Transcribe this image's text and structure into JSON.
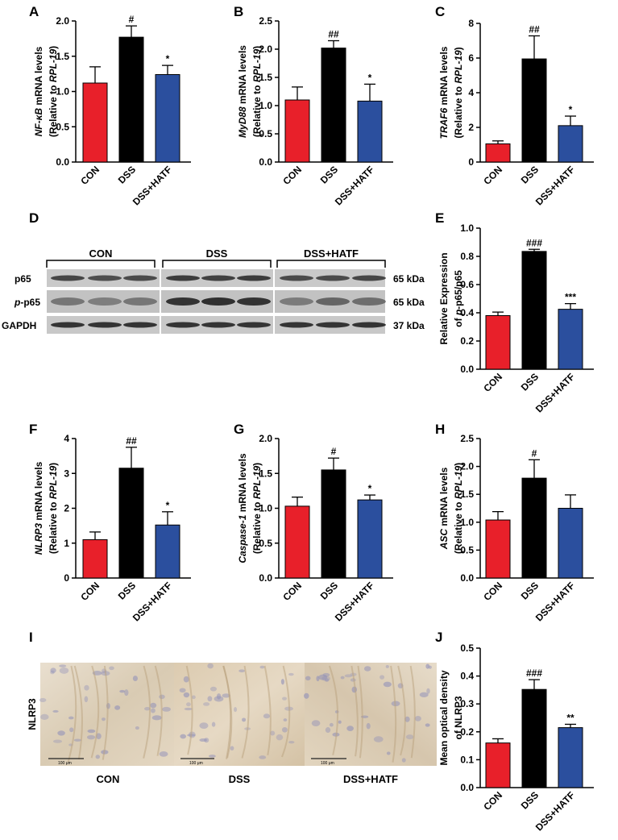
{
  "colors": {
    "CON": "#e8202a",
    "DSS": "#000000",
    "DSS+HATF": "#2b4f9e"
  },
  "groups": [
    "CON",
    "DSS",
    "DSS+HATF"
  ],
  "chart_data": [
    {
      "id": "A",
      "type": "bar",
      "ylabel_italic": "NF-κB",
      "ylabel_rest": " mRNA levels",
      "ylabel2_pre": "(Relative to ",
      "ylabel2_italic": "RPL-19",
      "ylabel2_post": ")",
      "categories": [
        "CON",
        "DSS",
        "DSS+HATF"
      ],
      "values": [
        1.12,
        1.77,
        1.24
      ],
      "errors": [
        0.23,
        0.16,
        0.13
      ],
      "sig": [
        "",
        "#",
        "*"
      ],
      "ylim": [
        0,
        2.0
      ],
      "ticks": [
        "0.0",
        "0.5",
        "1.0",
        "1.5",
        "2.0"
      ],
      "tick_values": [
        0,
        0.5,
        1.0,
        1.5,
        2.0
      ]
    },
    {
      "id": "B",
      "type": "bar",
      "ylabel_italic": "MyD88",
      "ylabel_rest": " mRNA levels",
      "ylabel2_pre": "(Relative to ",
      "ylabel2_italic": "RPL-19",
      "ylabel2_post": ")",
      "categories": [
        "CON",
        "DSS",
        "DSS+HATF"
      ],
      "values": [
        1.1,
        2.02,
        1.08
      ],
      "errors": [
        0.23,
        0.13,
        0.3
      ],
      "sig": [
        "",
        "##",
        "*"
      ],
      "ylim": [
        0,
        2.5
      ],
      "ticks": [
        "0.0",
        "0.5",
        "1.0",
        "1.5",
        "2.0",
        "2.5"
      ],
      "tick_values": [
        0,
        0.5,
        1.0,
        1.5,
        2.0,
        2.5
      ]
    },
    {
      "id": "C",
      "type": "bar",
      "ylabel_italic": "TRAF6",
      "ylabel_rest": " mRNA levels",
      "ylabel2_pre": "(Relative to ",
      "ylabel2_italic": "RPL-19",
      "ylabel2_post": ")",
      "categories": [
        "CON",
        "DSS",
        "DSS+HATF"
      ],
      "values": [
        1.05,
        5.95,
        2.1
      ],
      "errors": [
        0.17,
        1.33,
        0.55
      ],
      "sig": [
        "",
        "##",
        "*"
      ],
      "ylim": [
        0,
        8
      ],
      "ticks": [
        "0",
        "2",
        "4",
        "6",
        "8"
      ],
      "tick_values": [
        0,
        2,
        4,
        6,
        8
      ]
    },
    {
      "id": "E",
      "type": "bar",
      "ylabel_italic": "",
      "ylabel_rest": "Relative  Expression",
      "ylabel2_pre": "of ",
      "ylabel2_italic": "p",
      "ylabel2_post": "-p65/p65",
      "categories": [
        "CON",
        "DSS",
        "DSS+HATF"
      ],
      "values": [
        0.38,
        0.835,
        0.425
      ],
      "errors": [
        0.025,
        0.015,
        0.04
      ],
      "sig": [
        "",
        "###",
        "***"
      ],
      "ylim": [
        0,
        1.0
      ],
      "ticks": [
        "0.0",
        "0.2",
        "0.4",
        "0.6",
        "0.8",
        "1.0"
      ],
      "tick_values": [
        0,
        0.2,
        0.4,
        0.6,
        0.8,
        1.0
      ]
    },
    {
      "id": "F",
      "type": "bar",
      "ylabel_italic": "NLRP3",
      "ylabel_rest": " mRNA levels",
      "ylabel2_pre": "(Relative to ",
      "ylabel2_italic": "RPL-19",
      "ylabel2_post": ")",
      "categories": [
        "CON",
        "DSS",
        "DSS+HATF"
      ],
      "values": [
        1.1,
        3.15,
        1.52
      ],
      "errors": [
        0.22,
        0.6,
        0.38
      ],
      "sig": [
        "",
        "##",
        "*"
      ],
      "ylim": [
        0,
        4
      ],
      "ticks": [
        "0",
        "1",
        "2",
        "3",
        "4"
      ],
      "tick_values": [
        0,
        1,
        2,
        3,
        4
      ]
    },
    {
      "id": "G",
      "type": "bar",
      "ylabel_italic": "Caspase-1",
      "ylabel_rest": " mRNA levels",
      "ylabel2_pre": "(Relative to ",
      "ylabel2_italic": "RPL-19",
      "ylabel2_post": ")",
      "categories": [
        "CON",
        "DSS",
        "DSS+HATF"
      ],
      "values": [
        1.03,
        1.55,
        1.12
      ],
      "errors": [
        0.13,
        0.17,
        0.07
      ],
      "sig": [
        "",
        "#",
        "*"
      ],
      "ylim": [
        0,
        2.0
      ],
      "ticks": [
        "0.0",
        "0.5",
        "1.0",
        "1.5",
        "2.0"
      ],
      "tick_values": [
        0,
        0.5,
        1.0,
        1.5,
        2.0
      ]
    },
    {
      "id": "H",
      "type": "bar",
      "ylabel_italic": "ASC",
      "ylabel_rest": " mRNA levels",
      "ylabel2_pre": "(Relative to ",
      "ylabel2_italic": "RPL-19",
      "ylabel2_post": ")",
      "categories": [
        "CON",
        "DSS",
        "DSS+HATF"
      ],
      "values": [
        1.04,
        1.79,
        1.25
      ],
      "errors": [
        0.15,
        0.33,
        0.24
      ],
      "sig": [
        "",
        "#",
        ""
      ],
      "ylim": [
        0,
        2.5
      ],
      "ticks": [
        "0.0",
        "0.5",
        "1.0",
        "1.5",
        "2.0",
        "2.5"
      ],
      "tick_values": [
        0,
        0.5,
        1.0,
        1.5,
        2.0,
        2.5
      ]
    },
    {
      "id": "J",
      "type": "bar",
      "ylabel_italic": "",
      "ylabel_rest": "Mean optical density",
      "ylabel2_pre": "of NLRP3",
      "ylabel2_italic": "",
      "ylabel2_post": "",
      "categories": [
        "CON",
        "DSS",
        "DSS+HATF"
      ],
      "values": [
        0.16,
        0.352,
        0.215
      ],
      "errors": [
        0.015,
        0.035,
        0.012
      ],
      "sig": [
        "",
        "###",
        "**"
      ],
      "ylim": [
        0,
        0.5
      ],
      "ticks": [
        "0.0",
        "0.1",
        "0.2",
        "0.3",
        "0.4",
        "0.5"
      ],
      "tick_values": [
        0,
        0.1,
        0.2,
        0.3,
        0.4,
        0.5
      ]
    }
  ],
  "western": {
    "panel_letter": "D",
    "group_labels": [
      "CON",
      "DSS",
      "DSS+HATF"
    ],
    "rows": [
      {
        "label": "p65",
        "label_italic": "",
        "kda": "65 kDa"
      },
      {
        "label": "-p65",
        "label_italic": "p",
        "kda": "65 kDa"
      },
      {
        "label": "GAPDH",
        "label_italic": "",
        "kda": "37 kDa"
      }
    ]
  },
  "histology": {
    "panel_letter": "I",
    "row_label": "NLRP3",
    "captions": [
      "CON",
      "DSS",
      "DSS+HATF"
    ],
    "scale": "100 μm"
  }
}
